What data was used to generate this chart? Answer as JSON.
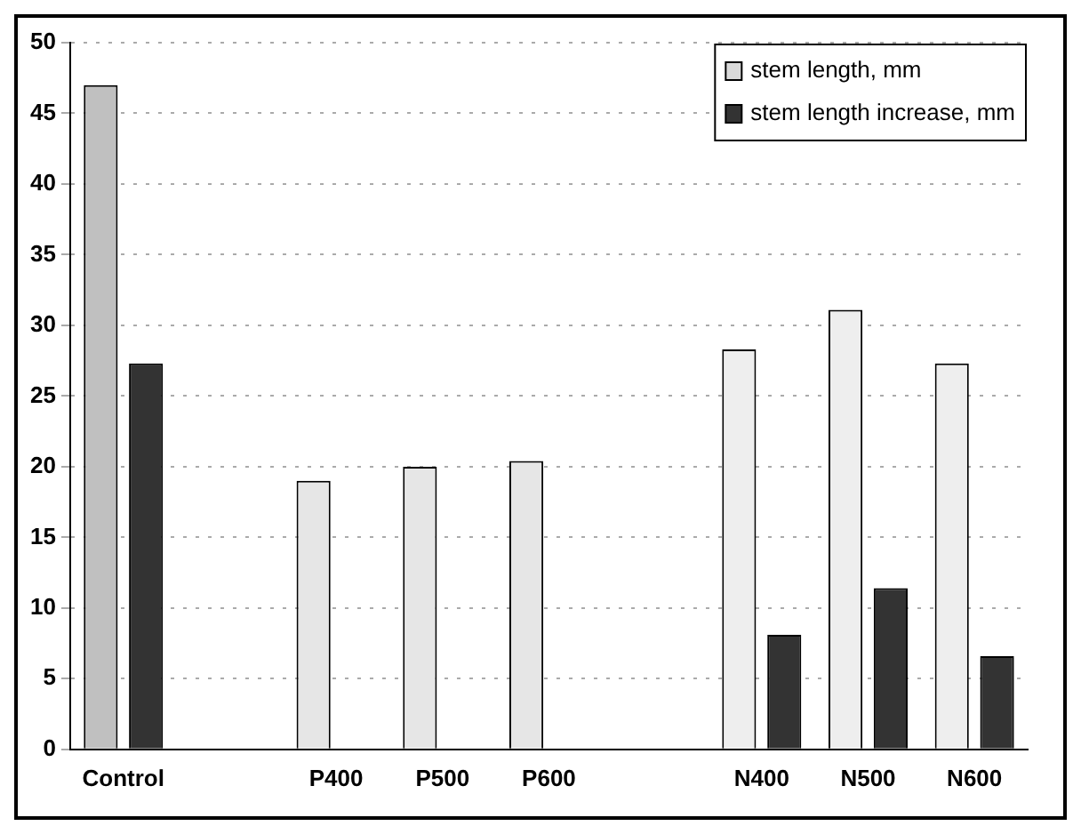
{
  "chart_data": {
    "type": "bar",
    "categories": [
      "Control",
      null,
      "P400",
      "P500",
      "P600",
      null,
      "N400",
      "N500",
      "N600"
    ],
    "series": [
      {
        "name": "stem length, mm",
        "color": "#d9d9d9",
        "colors": [
          "#c0c0c0",
          null,
          "#e6e6e6",
          "#e6e6e6",
          "#e6e6e6",
          null,
          "#eeeeee",
          "#eeeeee",
          "#eeeeee"
        ],
        "values": [
          47,
          null,
          19,
          20,
          20.4,
          null,
          28.3,
          31.1,
          27.3
        ]
      },
      {
        "name": "stem length increase, mm",
        "color": "#333333",
        "values": [
          27.3,
          null,
          0,
          0,
          0,
          null,
          8.1,
          11.4,
          6.6
        ]
      }
    ],
    "ylim": [
      0,
      50
    ],
    "yticks": [
      0,
      5,
      10,
      15,
      20,
      25,
      30,
      35,
      40,
      45,
      50
    ],
    "grid": "y",
    "legend": "top right"
  }
}
